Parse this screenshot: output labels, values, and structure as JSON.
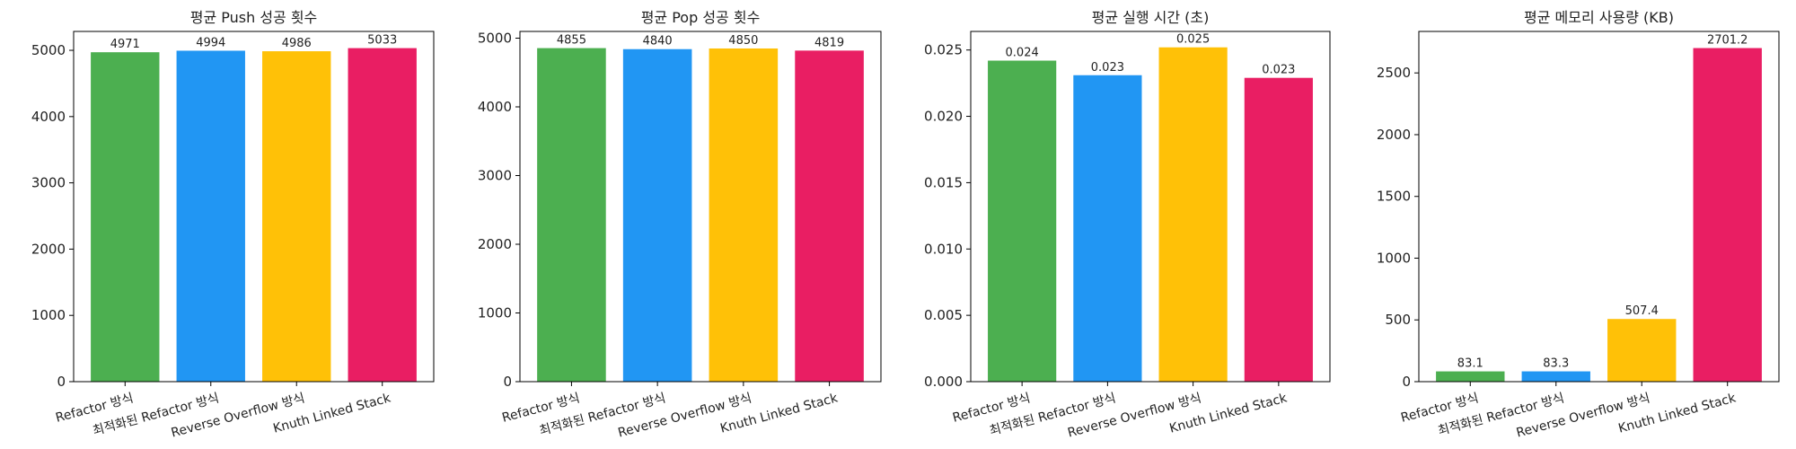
{
  "chart_data": [
    {
      "type": "bar",
      "title": "평균 Push 성공 횟수",
      "categories": [
        "Refactor 방식",
        "최적화된 Refactor 방식",
        "Reverse Overflow 방식",
        "Knuth Linked Stack"
      ],
      "values": [
        4971,
        4994,
        4986,
        5033
      ],
      "value_labels": [
        "4971",
        "4994",
        "4986",
        "5033"
      ],
      "colors": [
        "#4caf50",
        "#2196f3",
        "#ffc107",
        "#e91e63"
      ],
      "ylim": [
        0,
        5285
      ],
      "yticks": [
        0,
        1000,
        2000,
        3000,
        4000,
        5000
      ],
      "ytick_labels": [
        "0",
        "1000",
        "2000",
        "3000",
        "4000",
        "5000"
      ],
      "xlabel": "",
      "ylabel": "",
      "grid": false,
      "legend": "none"
    },
    {
      "type": "bar",
      "title": "평균 Pop 성공 횟수",
      "categories": [
        "Refactor 방식",
        "최적화된 Refactor 방식",
        "Reverse Overflow 방식",
        "Knuth Linked Stack"
      ],
      "values": [
        4855,
        4840,
        4850,
        4819
      ],
      "value_labels": [
        "4855",
        "4840",
        "4850",
        "4819"
      ],
      "colors": [
        "#4caf50",
        "#2196f3",
        "#ffc107",
        "#e91e63"
      ],
      "ylim": [
        0,
        5098
      ],
      "yticks": [
        0,
        1000,
        2000,
        3000,
        4000,
        5000
      ],
      "ytick_labels": [
        "0",
        "1000",
        "2000",
        "3000",
        "4000",
        "5000"
      ],
      "xlabel": "",
      "ylabel": "",
      "grid": false,
      "legend": "none"
    },
    {
      "type": "bar",
      "title": "평균 실행 시간 (초)",
      "categories": [
        "Refactor 방식",
        "최적화된 Refactor 방식",
        "Reverse Overflow 방식",
        "Knuth Linked Stack"
      ],
      "values": [
        0.0242,
        0.0231,
        0.0252,
        0.0229
      ],
      "value_labels": [
        "0.024",
        "0.023",
        "0.025",
        "0.023"
      ],
      "colors": [
        "#4caf50",
        "#2196f3",
        "#ffc107",
        "#e91e63"
      ],
      "ylim": [
        0,
        0.0264
      ],
      "yticks": [
        0,
        0.005,
        0.01,
        0.015,
        0.02,
        0.025
      ],
      "ytick_labels": [
        "0.000",
        "0.005",
        "0.010",
        "0.015",
        "0.020",
        "0.025"
      ],
      "xlabel": "",
      "ylabel": "",
      "grid": false,
      "legend": "none"
    },
    {
      "type": "bar",
      "title": "평균 메모리 사용량 (KB)",
      "categories": [
        "Refactor 방식",
        "최적화된 Refactor 방식",
        "Reverse Overflow 방식",
        "Knuth Linked Stack"
      ],
      "values": [
        83.1,
        83.3,
        507.4,
        2701.2
      ],
      "value_labels": [
        "83.1",
        "83.3",
        "507.4",
        "2701.2"
      ],
      "colors": [
        "#4caf50",
        "#2196f3",
        "#ffc107",
        "#e91e63"
      ],
      "ylim": [
        0,
        2836
      ],
      "yticks": [
        0,
        500,
        1000,
        1500,
        2000,
        2500
      ],
      "ytick_labels": [
        "0",
        "500",
        "1000",
        "1500",
        "2000",
        "2500"
      ],
      "xlabel": "",
      "ylabel": "",
      "grid": false,
      "legend": "none"
    }
  ]
}
